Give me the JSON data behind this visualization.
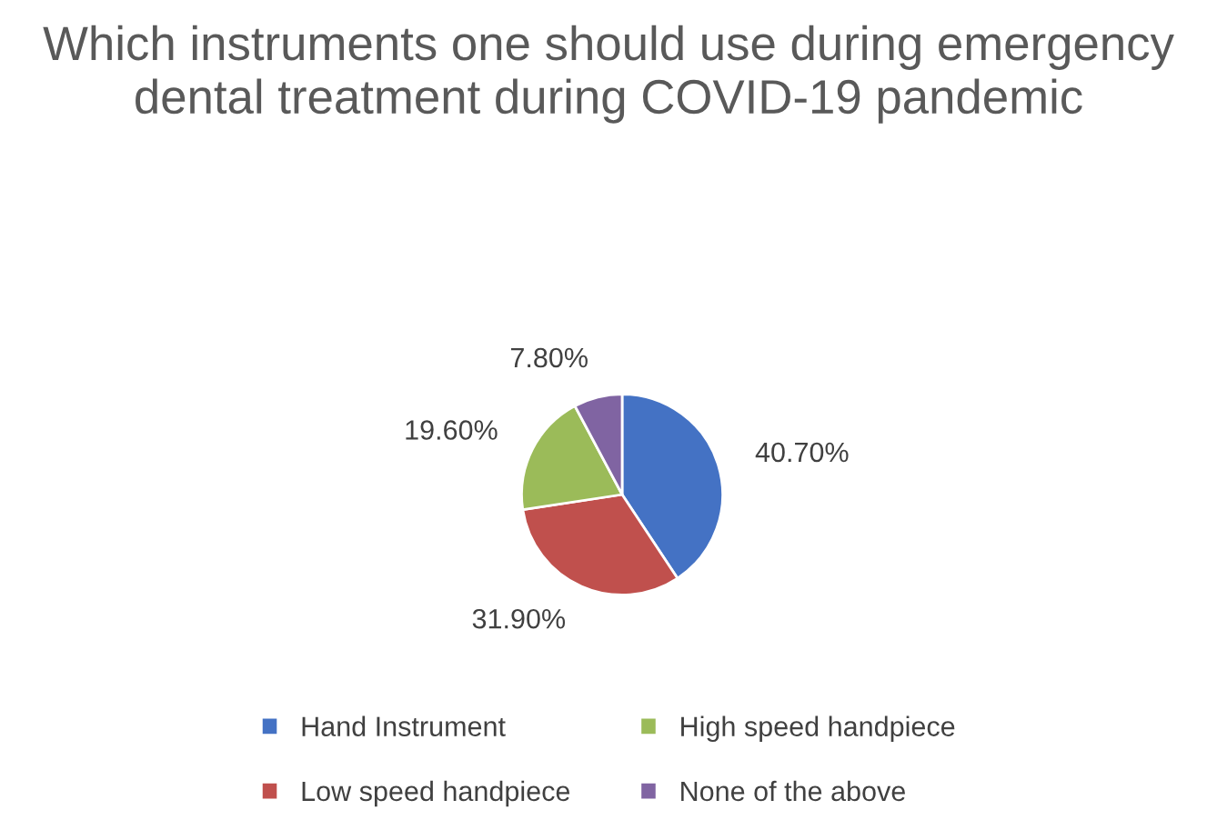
{
  "chart_data": {
    "type": "pie",
    "title": "Which instruments one should use during emergency dental treatment during COVID-19 pandemic",
    "categories": [
      "Hand Instrument",
      "Low speed handpiece",
      "High speed handpiece",
      "None of the above"
    ],
    "values": [
      40.7,
      31.9,
      19.6,
      7.8
    ],
    "value_labels": [
      "40.70%",
      "31.90%",
      "19.60%",
      "7.80%"
    ],
    "colors": [
      "#4472c4",
      "#c0504d",
      "#9bbb59",
      "#8064a2"
    ],
    "legend": "bottom"
  }
}
